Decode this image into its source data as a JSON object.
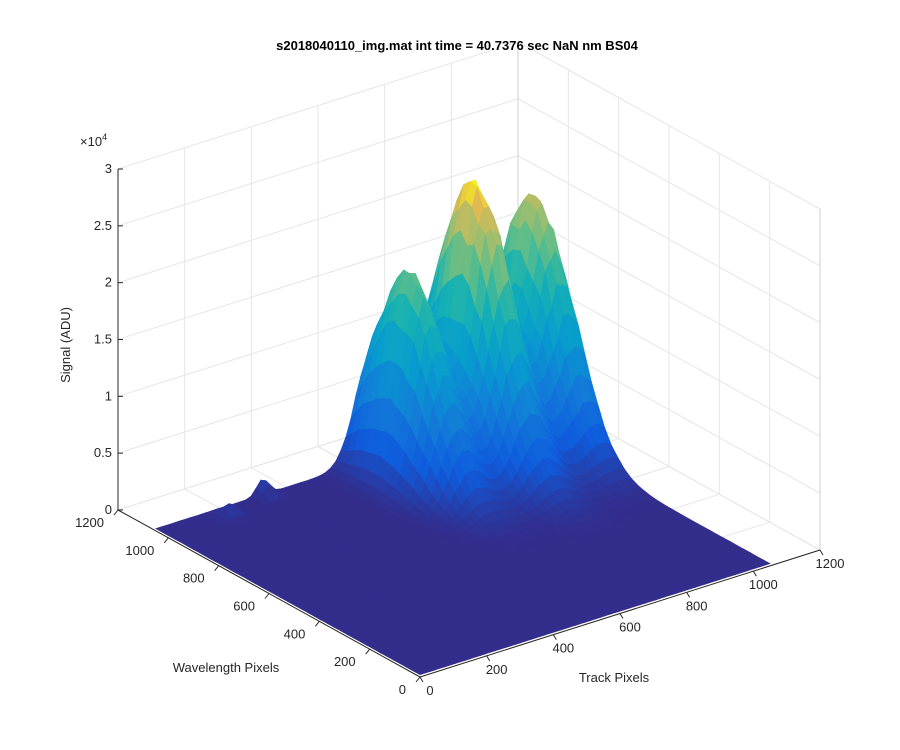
{
  "chart_data": {
    "type": "surface",
    "title": "s2018040110_img.mat int time = 40.7376 sec  NaN nm BS04",
    "zlabel": "Signal (ADU)",
    "xlabel": "Track Pixels",
    "ylabel": "Wavelength Pixels",
    "zlim": [
      0,
      30000
    ],
    "z_exponent_label": "×10",
    "z_exponent_power": "4",
    "xlim": [
      0,
      1200
    ],
    "ylim": [
      0,
      1200
    ],
    "z_ticks": [
      0,
      0.5,
      1,
      1.5,
      2,
      2.5,
      3
    ],
    "z_tick_labels": [
      "0",
      "0.5",
      "1",
      "1.5",
      "2",
      "2.5",
      "3"
    ],
    "x_ticks": [
      0,
      200,
      400,
      600,
      800,
      1000,
      1200
    ],
    "x_tick_labels": [
      "0",
      "200",
      "400",
      "600",
      "800",
      "1000",
      "1200"
    ],
    "y_ticks": [
      0,
      200,
      400,
      600,
      800,
      1000,
      1200
    ],
    "y_tick_labels": [
      "0",
      "200",
      "400",
      "600",
      "800",
      "1000",
      "1200"
    ],
    "grid": true,
    "colormap": "parula",
    "peaks": [
      {
        "track_center": 650,
        "track_width": 90,
        "wavelength_center": 900,
        "wavelength_width": 230,
        "peak_signal": 18000
      },
      {
        "track_center": 830,
        "track_width": 100,
        "wavelength_center": 880,
        "wavelength_width": 240,
        "peak_signal": 24500
      },
      {
        "track_center": 1020,
        "track_width": 105,
        "wavelength_center": 900,
        "wavelength_width": 230,
        "peak_signal": 21500
      }
    ],
    "baseline_signal": 200,
    "surface_extent": {
      "track": [
        0,
        1050
      ],
      "wavelength": [
        0,
        1050
      ]
    }
  }
}
